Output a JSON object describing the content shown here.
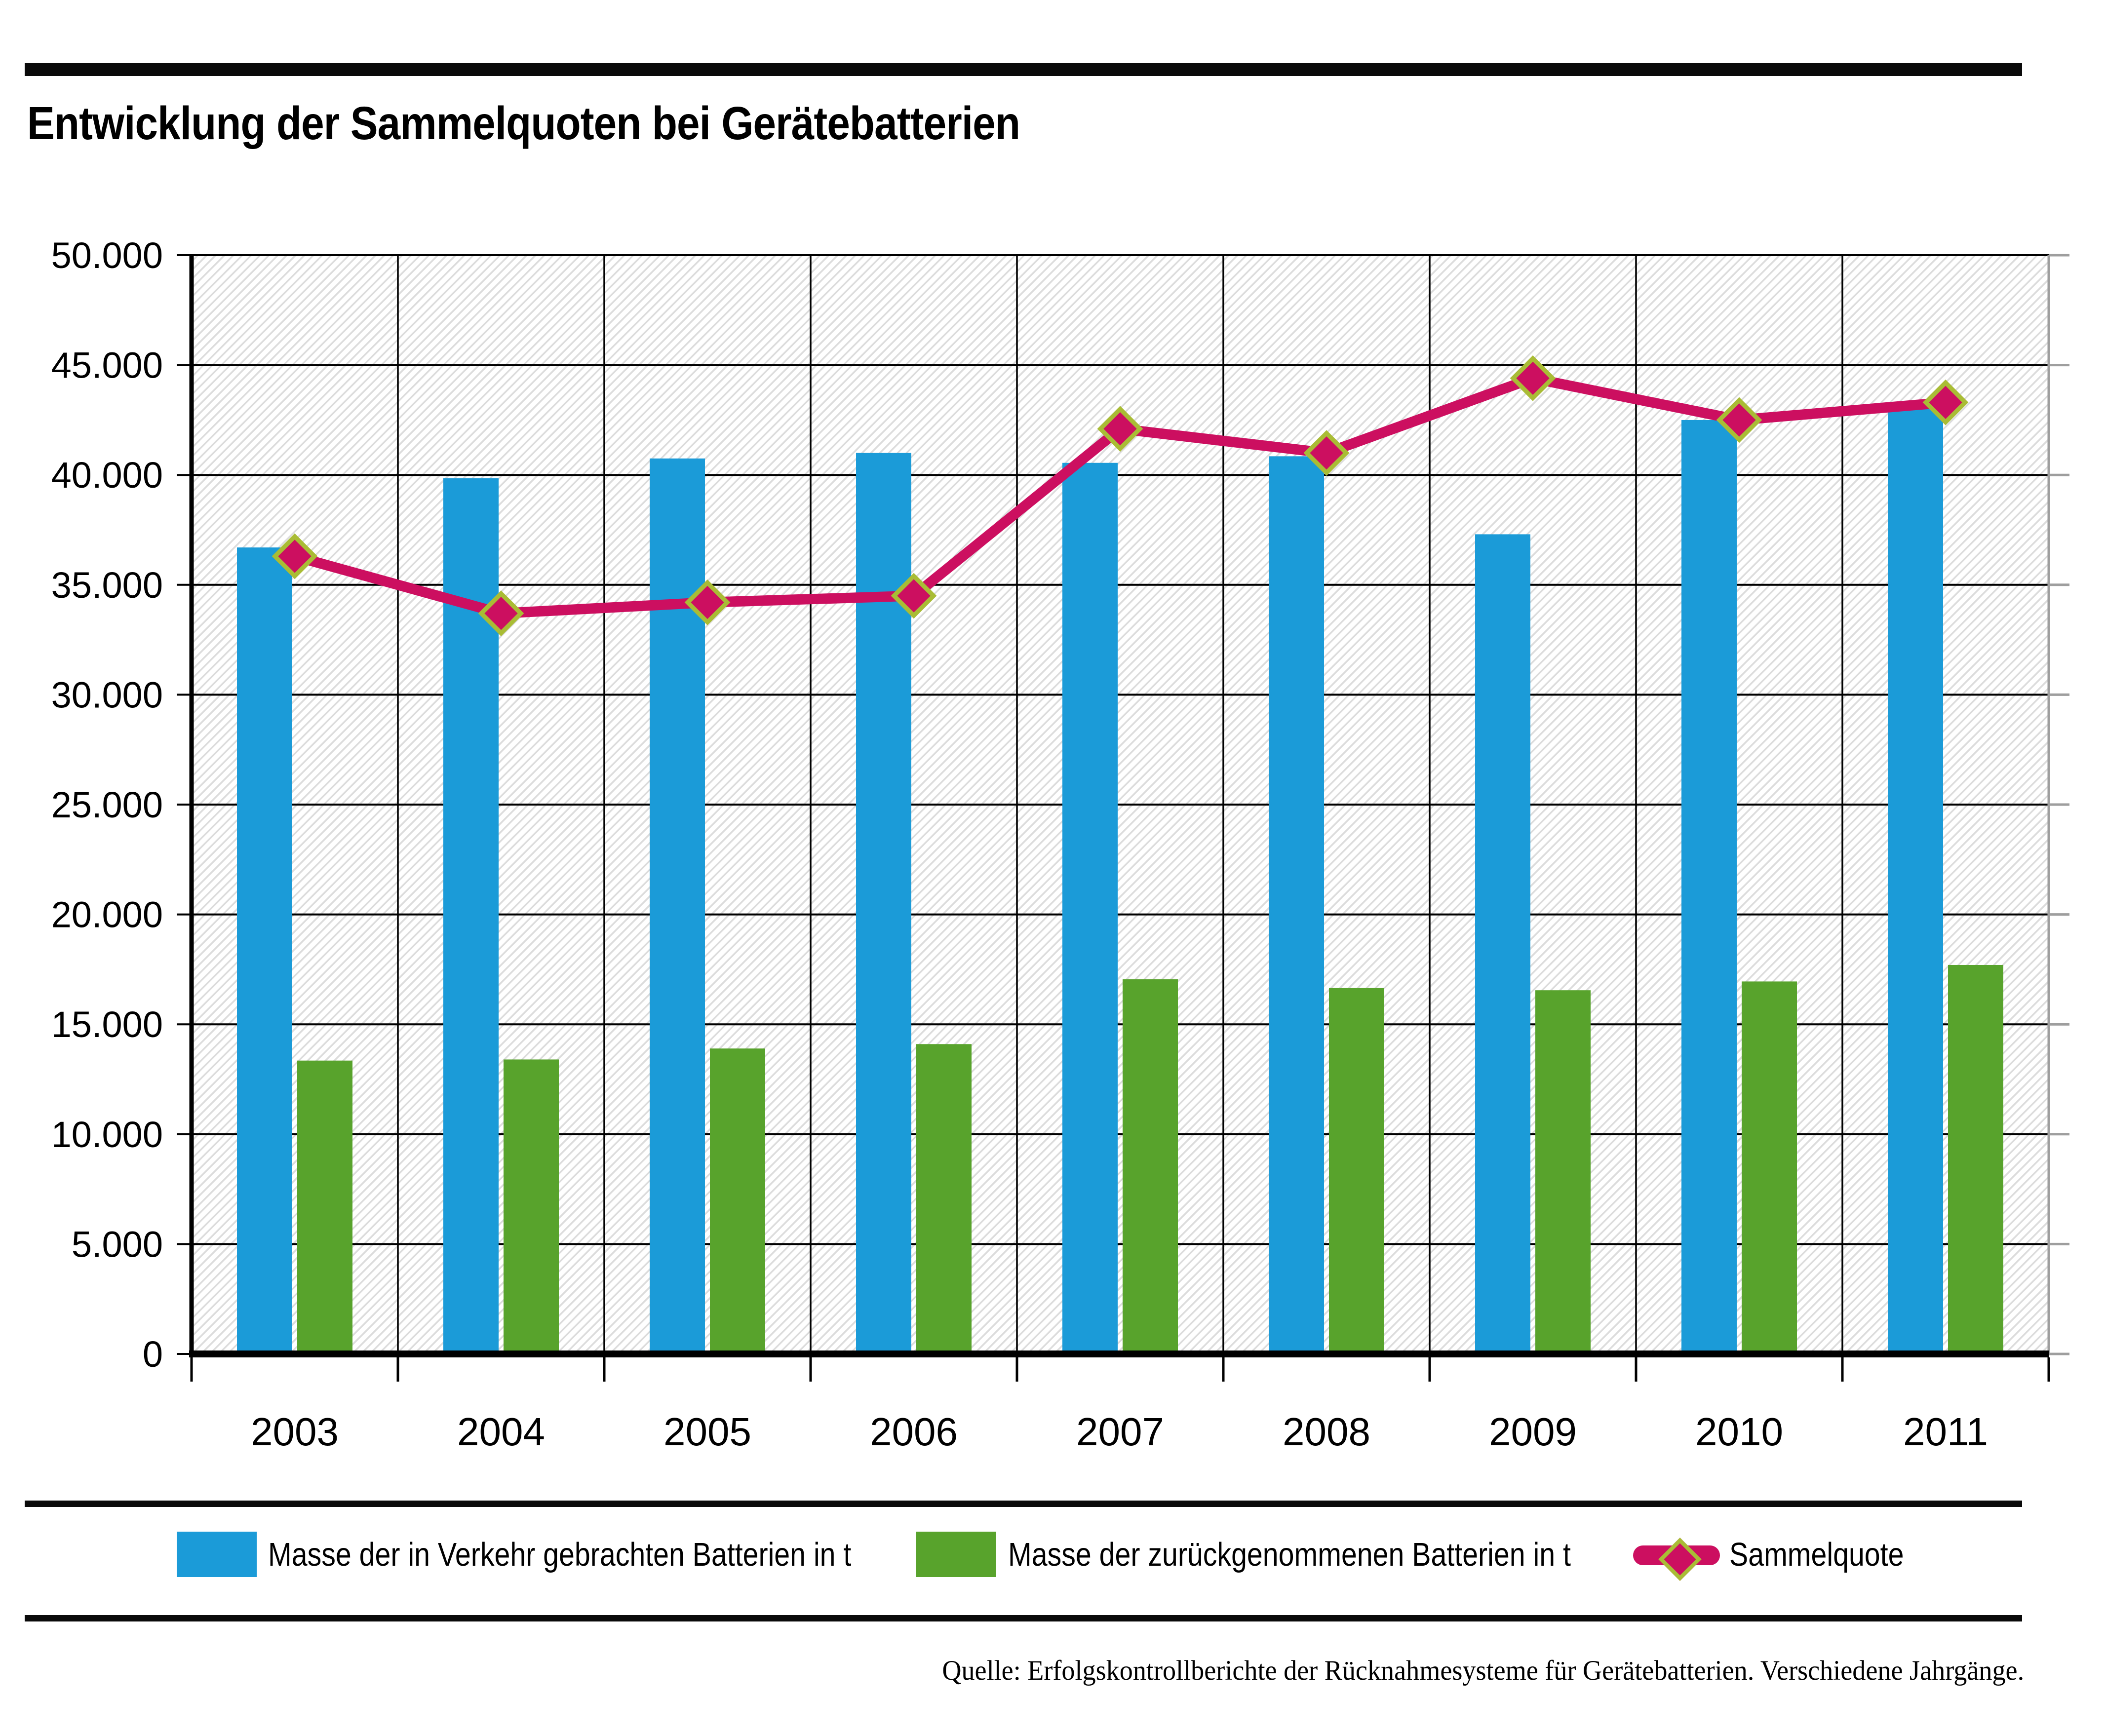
{
  "title": "Entwicklung der Sammelquoten bei Gerätebatterien",
  "source": "Quelle: Erfolgskontrollberichte der Rücknahmesysteme für Gerätebatterien. Verschiedene Jahrgänge.",
  "legend": {
    "items": [
      {
        "label": "Masse der in Verkehr gebrachten Batterien in t",
        "swatch": "blue-bar-swatch",
        "color": "#1B9BD8"
      },
      {
        "label": "Masse der zurückgenommenen Batterien in t",
        "swatch": "green-bar-swatch",
        "color": "#58A32C"
      },
      {
        "label": "Sammelquote",
        "swatch": "line-with-diamond-marker",
        "color": "#CC0F60",
        "marker_outline": "#A9BC35"
      }
    ]
  },
  "chart_data": {
    "type": "bar",
    "subtype": "grouped-bars-with-line-overlay",
    "categories": [
      "2003",
      "2004",
      "2005",
      "2006",
      "2007",
      "2008",
      "2009",
      "2010",
      "2011"
    ],
    "series": [
      {
        "name": "Masse der in Verkehr gebrachten Batterien in t",
        "color": "#1B9BD8",
        "values": [
          36700,
          39850,
          40750,
          41000,
          40550,
          40850,
          37300,
          42500,
          43150
        ]
      },
      {
        "name": "Masse der zurückgenommenen Batterien in t",
        "color": "#58A32C",
        "values": [
          13350,
          13400,
          13900,
          14100,
          17050,
          16650,
          16550,
          16950,
          17700
        ]
      }
    ],
    "line_series": {
      "name": "Sammelquote",
      "color": "#CC0F60",
      "marker": "diamond",
      "marker_outline": "#A9BC35",
      "values_percent": [
        36.3,
        33.7,
        34.2,
        34.5,
        42.1,
        41.0,
        44.4,
        42.5,
        43.3
      ],
      "axis_mapping": "percent_value_times_1000_plotted_on_tonnes_axis"
    },
    "xlabel": "",
    "ylabel": "",
    "ylim": [
      0,
      50000
    ],
    "y_ticks": [
      {
        "value": 0,
        "label": "0"
      },
      {
        "value": 5000,
        "label": "5.000"
      },
      {
        "value": 10000,
        "label": "10.000"
      },
      {
        "value": 15000,
        "label": "15.000"
      },
      {
        "value": 20000,
        "label": "20.000"
      },
      {
        "value": 25000,
        "label": "25.000"
      },
      {
        "value": 30000,
        "label": "30.000"
      },
      {
        "value": 35000,
        "label": "35.000"
      },
      {
        "value": 40000,
        "label": "40.000"
      },
      {
        "value": 45000,
        "label": "45.000"
      },
      {
        "value": 50000,
        "label": "50.000"
      }
    ],
    "grid": "horizontal major gridlines every 5.000, black",
    "plot_background": "white with light gray diagonal hatch",
    "legend_position": "bottom"
  },
  "colors": {
    "blue_bar": "#1B9BD8",
    "green_bar": "#58A32C",
    "line_pink": "#CC0F60",
    "diamond_outline": "#A9BC35",
    "gridline": "#000000",
    "right_border": "#9E9E9E",
    "hatch": "#DCDCDC",
    "rule": "#0A0A0A"
  }
}
